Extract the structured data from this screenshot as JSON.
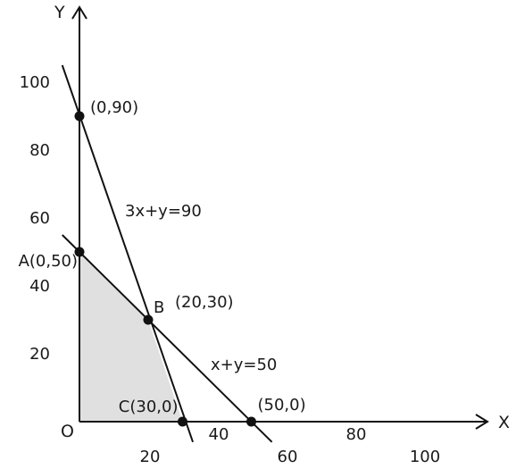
{
  "chart_data": {
    "type": "line",
    "xlabel": "X",
    "ylabel": "Y",
    "origin_label": "O",
    "xlim": [
      0,
      120
    ],
    "ylim": [
      0,
      110
    ],
    "grid": false,
    "x_ticks": [
      {
        "value": 20,
        "label": "20"
      },
      {
        "value": 40,
        "label": "40"
      },
      {
        "value": 60,
        "label": "60"
      },
      {
        "value": 80,
        "label": "80"
      },
      {
        "value": 100,
        "label": "100"
      }
    ],
    "y_ticks": [
      {
        "value": 20,
        "label": "20"
      },
      {
        "value": 40,
        "label": "40"
      },
      {
        "value": 60,
        "label": "60"
      },
      {
        "value": 80,
        "label": "80"
      },
      {
        "value": 100,
        "label": "100"
      }
    ],
    "series": [
      {
        "name": "3x+y=90",
        "points": [
          [
            -5,
            105
          ],
          [
            33,
            -6
          ]
        ]
      },
      {
        "name": "x+y=50",
        "points": [
          [
            -5,
            55
          ],
          [
            56,
            -6
          ]
        ]
      }
    ],
    "feasible_region": {
      "vertices": [
        [
          0,
          0
        ],
        [
          0,
          50
        ],
        [
          20,
          30
        ],
        [
          30,
          0
        ]
      ],
      "fill_color": "#e0e0e0"
    },
    "points": [
      {
        "x": 0,
        "y": 90,
        "label": "(0,90)"
      },
      {
        "x": 0,
        "y": 50,
        "label": "A(0,50)"
      },
      {
        "x": 20,
        "y": 30,
        "label": "(20,30)",
        "marker_label": "B"
      },
      {
        "x": 30,
        "y": 0,
        "label": "C(30,0)"
      },
      {
        "x": 50,
        "y": 0,
        "label": "(50,0)"
      }
    ]
  }
}
